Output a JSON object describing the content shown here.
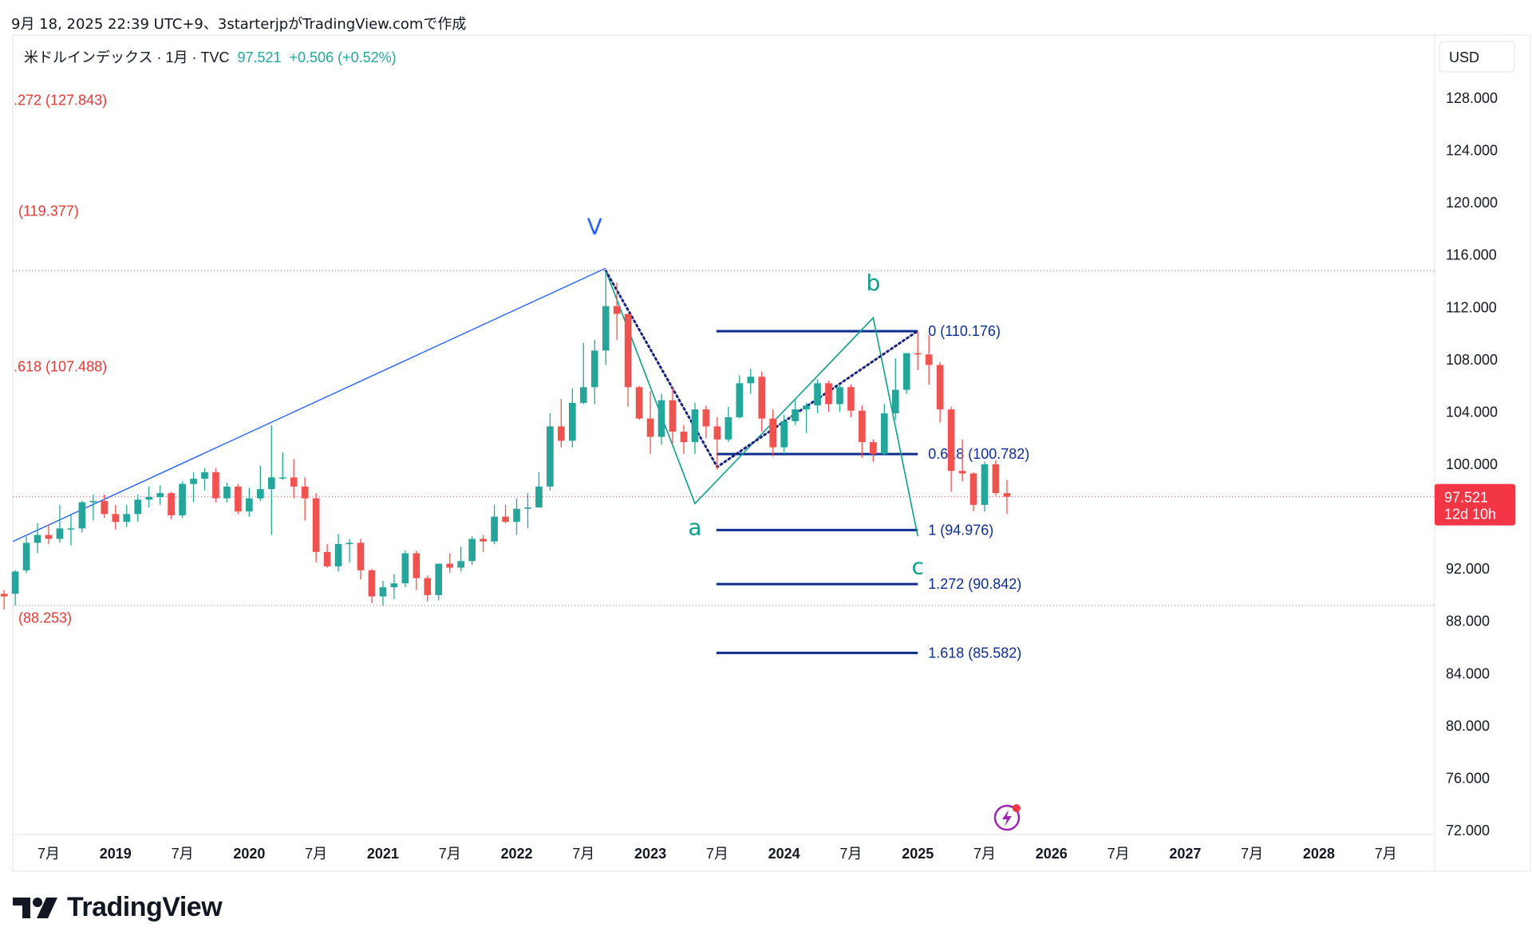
{
  "caption": "9月 18, 2025 22:39 UTC+9、3starterjpがTradingView.comで作成",
  "header": {
    "symbol": "米ドルインデックス · 1月 · TVC",
    "price": "97.521",
    "change": "+0.506 (+0.52%)"
  },
  "brand": {
    "name": "TradingView",
    "logo_icon": "tradingview-logo-icon"
  },
  "price_scale": {
    "currency": "USD"
  },
  "last_price_tag": {
    "price": "97.521",
    "countdown": "12d 10h"
  },
  "colors": {
    "up": "#26a69a",
    "down": "#ef5350",
    "fib_blue": "#0d2d8f",
    "wave_teal": "#0d9f8a",
    "wave_blue": "#2962ff",
    "fib_ext_red": "#e53935"
  },
  "chart_data": {
    "type": "candlestick",
    "title": "米ドルインデックス · 1月 · TVC",
    "ylim": [
      72,
      130
    ],
    "yticks": [
      "128.000",
      "124.000",
      "120.000",
      "116.000",
      "112.000",
      "108.000",
      "104.000",
      "100.000",
      "96.000",
      "92.000",
      "88.000",
      "84.000",
      "80.000",
      "76.000",
      "72.000"
    ],
    "y_values": [
      128,
      124,
      120,
      116,
      112,
      108,
      104,
      100,
      96,
      92,
      88,
      84,
      80,
      76,
      72
    ],
    "xticks": [
      {
        "label": "7月",
        "date": "2018-07"
      },
      {
        "label": "2019",
        "date": "2019-01"
      },
      {
        "label": "7月",
        "date": "2019-07"
      },
      {
        "label": "2020",
        "date": "2020-01"
      },
      {
        "label": "7月",
        "date": "2020-07"
      },
      {
        "label": "2021",
        "date": "2021-01"
      },
      {
        "label": "7月",
        "date": "2021-07"
      },
      {
        "label": "2022",
        "date": "2022-01"
      },
      {
        "label": "7月",
        "date": "2022-07"
      },
      {
        "label": "2023",
        "date": "2023-01"
      },
      {
        "label": "7月",
        "date": "2023-07"
      },
      {
        "label": "2024",
        "date": "2024-01"
      },
      {
        "label": "7月",
        "date": "2024-07"
      },
      {
        "label": "2025",
        "date": "2025-01"
      },
      {
        "label": "7月",
        "date": "2025-07"
      },
      {
        "label": "2026",
        "date": "2026-01"
      },
      {
        "label": "7月",
        "date": "2026-07"
      },
      {
        "label": "2027",
        "date": "2027-01"
      },
      {
        "label": "7月",
        "date": "2027-07"
      },
      {
        "label": "2028",
        "date": "2028-01"
      },
      {
        "label": "7月",
        "date": "2028-07"
      }
    ],
    "candles": [
      {
        "d": "2018-02",
        "o": 89.1,
        "h": 90.6,
        "l": 88.3,
        "c": 90.6
      },
      {
        "d": "2018-03",
        "o": 90.1,
        "h": 90.4,
        "l": 88.9,
        "c": 89.9
      },
      {
        "d": "2018-04",
        "o": 90.1,
        "h": 91.9,
        "l": 89.2,
        "c": 91.8
      },
      {
        "d": "2018-05",
        "o": 91.9,
        "h": 94.5,
        "l": 91.7,
        "c": 94.0
      },
      {
        "d": "2018-06",
        "o": 94.0,
        "h": 95.5,
        "l": 93.2,
        "c": 94.6
      },
      {
        "d": "2018-07",
        "o": 94.6,
        "h": 95.4,
        "l": 93.9,
        "c": 94.3
      },
      {
        "d": "2018-08",
        "o": 94.3,
        "h": 96.9,
        "l": 94.0,
        "c": 95.1
      },
      {
        "d": "2018-09",
        "o": 95.1,
        "h": 96.1,
        "l": 93.8,
        "c": 95.1
      },
      {
        "d": "2018-10",
        "o": 95.1,
        "h": 97.2,
        "l": 94.8,
        "c": 97.1
      },
      {
        "d": "2018-11",
        "o": 97.1,
        "h": 97.7,
        "l": 95.7,
        "c": 97.2
      },
      {
        "d": "2018-12",
        "o": 97.2,
        "h": 97.7,
        "l": 95.9,
        "c": 96.2
      },
      {
        "d": "2019-01",
        "o": 96.2,
        "h": 96.9,
        "l": 95.0,
        "c": 95.6
      },
      {
        "d": "2019-02",
        "o": 95.6,
        "h": 96.9,
        "l": 95.2,
        "c": 96.2
      },
      {
        "d": "2019-03",
        "o": 96.2,
        "h": 97.7,
        "l": 95.6,
        "c": 97.3
      },
      {
        "d": "2019-04",
        "o": 97.3,
        "h": 98.3,
        "l": 96.7,
        "c": 97.5
      },
      {
        "d": "2019-05",
        "o": 97.5,
        "h": 98.4,
        "l": 96.9,
        "c": 97.8
      },
      {
        "d": "2019-06",
        "o": 97.8,
        "h": 97.9,
        "l": 95.8,
        "c": 96.1
      },
      {
        "d": "2019-07",
        "o": 96.1,
        "h": 98.7,
        "l": 95.9,
        "c": 98.5
      },
      {
        "d": "2019-08",
        "o": 98.5,
        "h": 99.4,
        "l": 97.1,
        "c": 98.9
      },
      {
        "d": "2019-09",
        "o": 98.9,
        "h": 99.7,
        "l": 98.0,
        "c": 99.4
      },
      {
        "d": "2019-10",
        "o": 99.4,
        "h": 99.7,
        "l": 97.1,
        "c": 97.4
      },
      {
        "d": "2019-11",
        "o": 97.4,
        "h": 98.6,
        "l": 97.1,
        "c": 98.3
      },
      {
        "d": "2019-12",
        "o": 98.3,
        "h": 98.5,
        "l": 96.2,
        "c": 96.4
      },
      {
        "d": "2020-01",
        "o": 96.4,
        "h": 98.2,
        "l": 96.0,
        "c": 97.4
      },
      {
        "d": "2020-02",
        "o": 97.4,
        "h": 99.9,
        "l": 97.2,
        "c": 98.1
      },
      {
        "d": "2020-03",
        "o": 98.1,
        "h": 103.0,
        "l": 94.6,
        "c": 99.0
      },
      {
        "d": "2020-04",
        "o": 99.0,
        "h": 100.9,
        "l": 98.8,
        "c": 99.0
      },
      {
        "d": "2020-05",
        "o": 99.0,
        "h": 100.4,
        "l": 97.4,
        "c": 98.3
      },
      {
        "d": "2020-06",
        "o": 98.3,
        "h": 99.0,
        "l": 95.7,
        "c": 97.4
      },
      {
        "d": "2020-07",
        "o": 97.4,
        "h": 97.8,
        "l": 92.5,
        "c": 93.3
      },
      {
        "d": "2020-08",
        "o": 93.3,
        "h": 93.9,
        "l": 92.1,
        "c": 92.2
      },
      {
        "d": "2020-09",
        "o": 92.2,
        "h": 94.7,
        "l": 91.8,
        "c": 93.9
      },
      {
        "d": "2020-10",
        "o": 93.9,
        "h": 94.3,
        "l": 92.5,
        "c": 94.0
      },
      {
        "d": "2020-11",
        "o": 94.0,
        "h": 94.3,
        "l": 91.2,
        "c": 91.9
      },
      {
        "d": "2020-12",
        "o": 91.9,
        "h": 92.0,
        "l": 89.4,
        "c": 89.9
      },
      {
        "d": "2021-01",
        "o": 89.9,
        "h": 91.1,
        "l": 89.2,
        "c": 90.6
      },
      {
        "d": "2021-02",
        "o": 90.6,
        "h": 91.6,
        "l": 89.7,
        "c": 90.9
      },
      {
        "d": "2021-03",
        "o": 90.9,
        "h": 93.4,
        "l": 90.6,
        "c": 93.2
      },
      {
        "d": "2021-04",
        "o": 93.2,
        "h": 93.4,
        "l": 90.4,
        "c": 91.3
      },
      {
        "d": "2021-05",
        "o": 91.3,
        "h": 91.5,
        "l": 89.5,
        "c": 90.0
      },
      {
        "d": "2021-06",
        "o": 90.0,
        "h": 92.4,
        "l": 89.6,
        "c": 92.4
      },
      {
        "d": "2021-07",
        "o": 92.4,
        "h": 93.2,
        "l": 91.7,
        "c": 92.1
      },
      {
        "d": "2021-08",
        "o": 92.1,
        "h": 93.7,
        "l": 91.8,
        "c": 92.6
      },
      {
        "d": "2021-09",
        "o": 92.6,
        "h": 94.5,
        "l": 92.3,
        "c": 94.3
      },
      {
        "d": "2021-10",
        "o": 94.3,
        "h": 94.6,
        "l": 93.3,
        "c": 94.1
      },
      {
        "d": "2021-11",
        "o": 94.1,
        "h": 96.9,
        "l": 93.9,
        "c": 96.0
      },
      {
        "d": "2021-12",
        "o": 96.0,
        "h": 96.9,
        "l": 95.5,
        "c": 95.6
      },
      {
        "d": "2022-01",
        "o": 95.6,
        "h": 97.4,
        "l": 94.6,
        "c": 96.6
      },
      {
        "d": "2022-02",
        "o": 96.6,
        "h": 97.8,
        "l": 95.1,
        "c": 96.7
      },
      {
        "d": "2022-03",
        "o": 96.7,
        "h": 99.4,
        "l": 96.7,
        "c": 98.3
      },
      {
        "d": "2022-04",
        "o": 98.3,
        "h": 103.9,
        "l": 98.0,
        "c": 102.9
      },
      {
        "d": "2022-05",
        "o": 102.9,
        "h": 105.0,
        "l": 101.3,
        "c": 101.8
      },
      {
        "d": "2022-06",
        "o": 101.8,
        "h": 105.8,
        "l": 101.3,
        "c": 104.7
      },
      {
        "d": "2022-07",
        "o": 104.7,
        "h": 109.3,
        "l": 104.6,
        "c": 105.9
      },
      {
        "d": "2022-08",
        "o": 105.9,
        "h": 109.5,
        "l": 104.6,
        "c": 108.7
      },
      {
        "d": "2022-09",
        "o": 108.7,
        "h": 114.8,
        "l": 107.6,
        "c": 112.1
      },
      {
        "d": "2022-10",
        "o": 112.1,
        "h": 113.9,
        "l": 109.5,
        "c": 111.5
      },
      {
        "d": "2022-11",
        "o": 111.5,
        "h": 111.5,
        "l": 104.4,
        "c": 105.9
      },
      {
        "d": "2022-12",
        "o": 105.9,
        "h": 106.0,
        "l": 103.4,
        "c": 103.5
      },
      {
        "d": "2023-01",
        "o": 103.5,
        "h": 105.6,
        "l": 100.8,
        "c": 102.1
      },
      {
        "d": "2023-02",
        "o": 102.1,
        "h": 105.4,
        "l": 101.5,
        "c": 104.9
      },
      {
        "d": "2023-03",
        "o": 104.9,
        "h": 105.9,
        "l": 101.6,
        "c": 102.5
      },
      {
        "d": "2023-04",
        "o": 102.5,
        "h": 103.0,
        "l": 100.8,
        "c": 101.7
      },
      {
        "d": "2023-05",
        "o": 101.7,
        "h": 104.7,
        "l": 100.8,
        "c": 104.2
      },
      {
        "d": "2023-06",
        "o": 104.2,
        "h": 104.5,
        "l": 102.0,
        "c": 102.9
      },
      {
        "d": "2023-07",
        "o": 102.9,
        "h": 103.6,
        "l": 99.6,
        "c": 101.9
      },
      {
        "d": "2023-08",
        "o": 101.9,
        "h": 104.4,
        "l": 101.7,
        "c": 103.6
      },
      {
        "d": "2023-09",
        "o": 103.6,
        "h": 106.8,
        "l": 103.5,
        "c": 106.2
      },
      {
        "d": "2023-10",
        "o": 106.2,
        "h": 107.3,
        "l": 105.4,
        "c": 106.7
      },
      {
        "d": "2023-11",
        "o": 106.7,
        "h": 107.1,
        "l": 102.5,
        "c": 103.5
      },
      {
        "d": "2023-12",
        "o": 103.5,
        "h": 104.2,
        "l": 100.6,
        "c": 101.3
      },
      {
        "d": "2024-01",
        "o": 101.3,
        "h": 103.8,
        "l": 100.8,
        "c": 103.3
      },
      {
        "d": "2024-02",
        "o": 103.3,
        "h": 104.9,
        "l": 103.0,
        "c": 104.2
      },
      {
        "d": "2024-03",
        "o": 104.2,
        "h": 104.7,
        "l": 102.4,
        "c": 104.5
      },
      {
        "d": "2024-04",
        "o": 104.5,
        "h": 106.5,
        "l": 103.9,
        "c": 106.2
      },
      {
        "d": "2024-05",
        "o": 106.2,
        "h": 106.4,
        "l": 104.0,
        "c": 104.6
      },
      {
        "d": "2024-06",
        "o": 104.6,
        "h": 106.1,
        "l": 104.0,
        "c": 105.9
      },
      {
        "d": "2024-07",
        "o": 105.9,
        "h": 106.1,
        "l": 103.6,
        "c": 104.1
      },
      {
        "d": "2024-08",
        "o": 104.1,
        "h": 104.5,
        "l": 100.5,
        "c": 101.7
      },
      {
        "d": "2024-09",
        "o": 101.7,
        "h": 101.9,
        "l": 100.2,
        "c": 100.8
      },
      {
        "d": "2024-10",
        "o": 100.8,
        "h": 104.6,
        "l": 100.7,
        "c": 103.9
      },
      {
        "d": "2024-11",
        "o": 103.9,
        "h": 108.1,
        "l": 103.4,
        "c": 105.7
      },
      {
        "d": "2024-12",
        "o": 105.7,
        "h": 108.5,
        "l": 105.4,
        "c": 108.5
      },
      {
        "d": "2025-01",
        "o": 108.5,
        "h": 110.2,
        "l": 107.2,
        "c": 108.4
      },
      {
        "d": "2025-02",
        "o": 108.4,
        "h": 109.9,
        "l": 106.1,
        "c": 107.6
      },
      {
        "d": "2025-03",
        "o": 107.6,
        "h": 107.8,
        "l": 103.2,
        "c": 104.2
      },
      {
        "d": "2025-04",
        "o": 104.2,
        "h": 104.4,
        "l": 97.9,
        "c": 99.5
      },
      {
        "d": "2025-05",
        "o": 99.5,
        "h": 101.9,
        "l": 98.7,
        "c": 99.3
      },
      {
        "d": "2025-06",
        "o": 99.3,
        "h": 99.4,
        "l": 96.4,
        "c": 96.9
      },
      {
        "d": "2025-07",
        "o": 96.9,
        "h": 100.2,
        "l": 96.4,
        "c": 100.0
      },
      {
        "d": "2025-08",
        "o": 100.0,
        "h": 100.3,
        "l": 97.6,
        "c": 97.8
      },
      {
        "d": "2025-09",
        "o": 97.8,
        "h": 98.8,
        "l": 96.2,
        "c": 97.521
      }
    ],
    "horizontal_levels": [
      {
        "price": 114.8,
        "style": "dotted"
      },
      {
        "price": 97.521,
        "style": "dotted-last-price"
      },
      {
        "price": 89.2,
        "style": "dotted"
      }
    ],
    "fib_ext_labels_left": [
      {
        "text": ".272 (127.843)",
        "price": 127.843
      },
      {
        "text": "(119.377)",
        "price": 119.377
      },
      {
        "text": ".618 (107.488)",
        "price": 107.488
      },
      {
        "text": "(88.253)",
        "price": 88.253
      }
    ],
    "fib_levels": [
      {
        "text": "0 (110.176)",
        "price": 110.176,
        "from": "2023-07",
        "to": "2025-01"
      },
      {
        "text": "0.618 (100.782)",
        "price": 100.782,
        "from": "2023-07",
        "to": "2025-01"
      },
      {
        "text": "1 (94.976)",
        "price": 94.976,
        "from": "2023-07",
        "to": "2025-01"
      },
      {
        "text": "1.272 (90.842)",
        "price": 90.842,
        "from": "2023-07",
        "to": "2025-01"
      },
      {
        "text": "1.618 (85.582)",
        "price": 85.582,
        "from": "2023-07",
        "to": "2025-01"
      }
    ],
    "wave_v_line": {
      "from": {
        "d": "2018-02",
        "p": 94.1
      },
      "to": {
        "d": "2022-09",
        "p": 115.0
      }
    },
    "wave_abc_path": [
      {
        "d": "2022-09",
        "p": 114.8
      },
      {
        "d": "2023-05",
        "p": 97.0
      },
      {
        "d": "2024-09",
        "p": 111.2
      },
      {
        "d": "2025-01",
        "p": 94.5
      }
    ],
    "dotted_path": [
      {
        "d": "2022-09",
        "p": 114.8
      },
      {
        "d": "2023-07",
        "p": 99.8
      },
      {
        "d": "2025-01",
        "p": 110.2
      }
    ],
    "wave_labels": [
      {
        "text": "V",
        "d": "2022-08",
        "p": 117.6,
        "color": "wave_blue"
      },
      {
        "text": "a",
        "d": "2023-05",
        "p": 94.6,
        "color": "wave_teal"
      },
      {
        "text": "b",
        "d": "2024-09",
        "p": 113.3,
        "color": "wave_teal"
      },
      {
        "text": "c",
        "d": "2025-01",
        "p": 91.6,
        "color": "wave_teal"
      }
    ]
  }
}
